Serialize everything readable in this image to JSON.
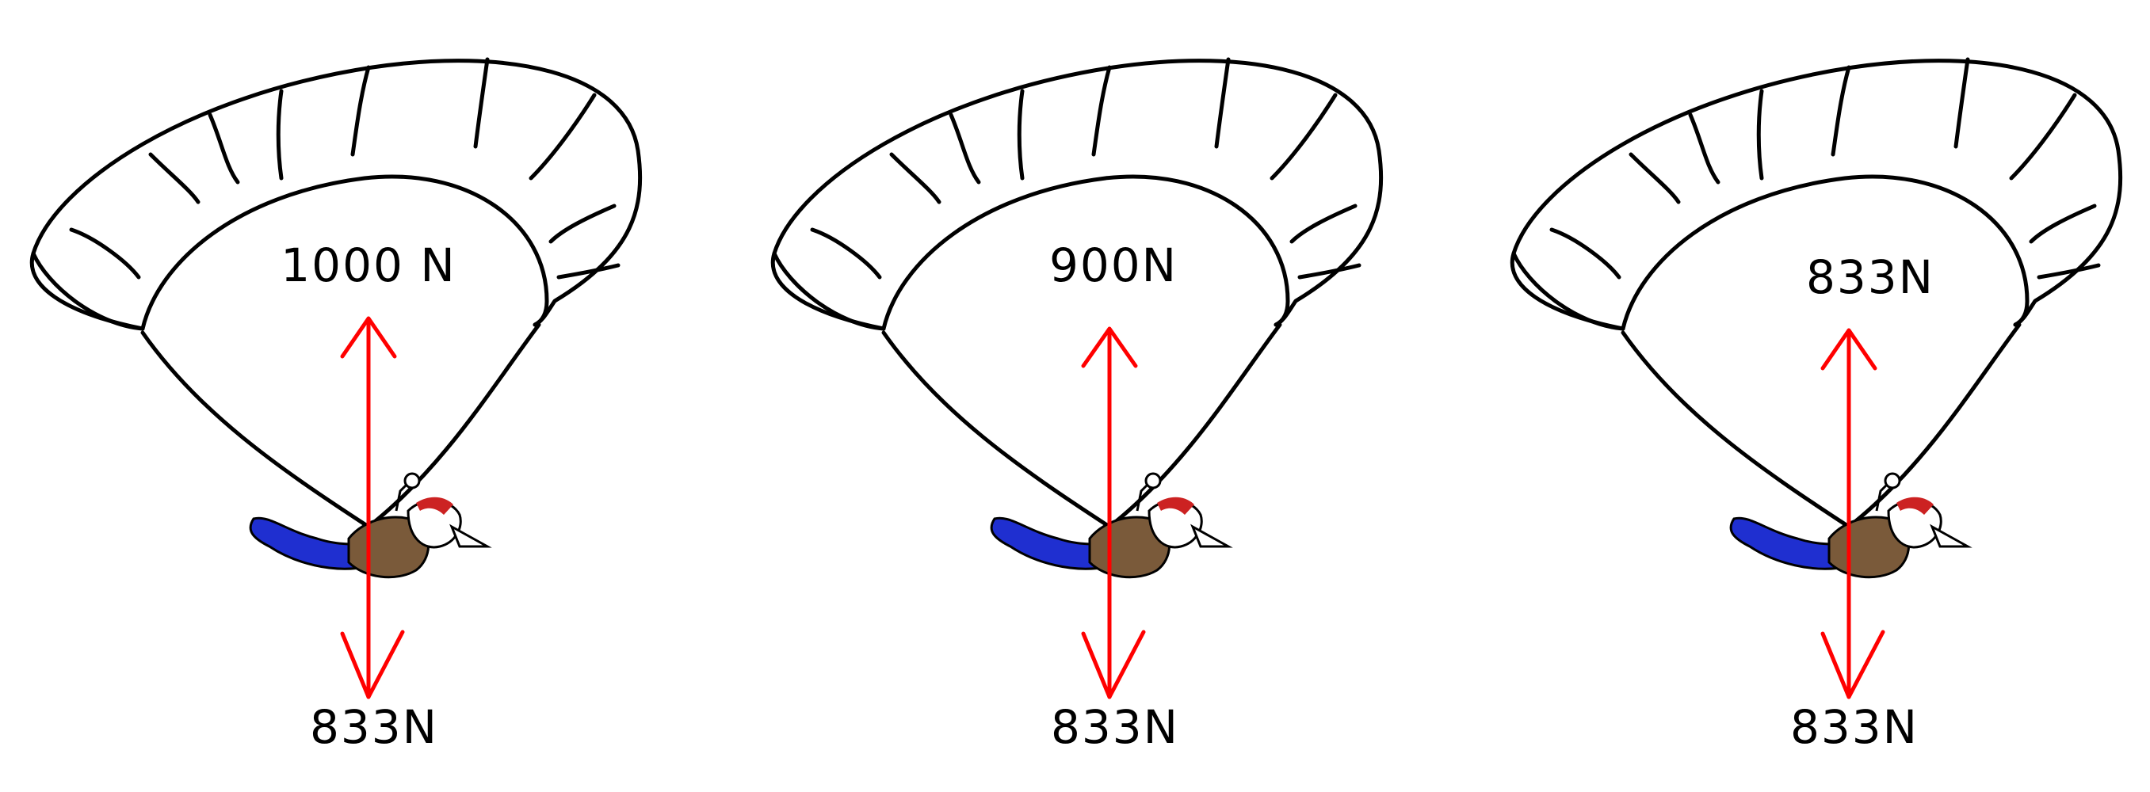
{
  "colors": {
    "force_arrow": "#ff0000",
    "outline": "#000000",
    "suit_blue": "#1f2fd0",
    "body_brown": "#7a5a3a",
    "helmet_red": "#cc2222",
    "helmet_white": "#ffffff"
  },
  "panels": [
    {
      "up_force_label": "1000 N",
      "down_force_label": "833N",
      "up_force_value_n": 1000,
      "down_force_value_n": 833
    },
    {
      "up_force_label": "900N",
      "down_force_label": "833N",
      "up_force_value_n": 900,
      "down_force_value_n": 833
    },
    {
      "up_force_label": "833N",
      "down_force_label": "833N",
      "up_force_value_n": 833,
      "down_force_value_n": 833
    }
  ]
}
